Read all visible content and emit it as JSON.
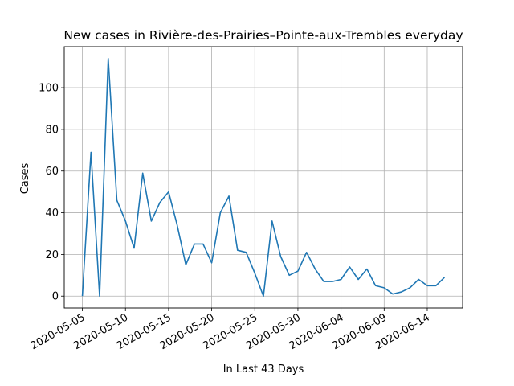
{
  "chart_data": {
    "type": "line",
    "title": "New cases in Rivière-des-Prairies–Pointe-aux-Trembles everyday",
    "xlabel": "In Last 43 Days",
    "ylabel": "Cases",
    "x_start": "2020-05-05",
    "x": [
      "2020-05-05",
      "2020-05-06",
      "2020-05-07",
      "2020-05-08",
      "2020-05-09",
      "2020-05-10",
      "2020-05-11",
      "2020-05-12",
      "2020-05-13",
      "2020-05-14",
      "2020-05-15",
      "2020-05-16",
      "2020-05-17",
      "2020-05-18",
      "2020-05-19",
      "2020-05-20",
      "2020-05-21",
      "2020-05-22",
      "2020-05-23",
      "2020-05-24",
      "2020-05-25",
      "2020-05-26",
      "2020-05-27",
      "2020-05-28",
      "2020-05-29",
      "2020-05-30",
      "2020-05-31",
      "2020-06-01",
      "2020-06-02",
      "2020-06-03",
      "2020-06-04",
      "2020-06-05",
      "2020-06-06",
      "2020-06-07",
      "2020-06-08",
      "2020-06-09",
      "2020-06-10",
      "2020-06-11",
      "2020-06-12",
      "2020-06-13",
      "2020-06-14",
      "2020-06-15",
      "2020-06-16"
    ],
    "values": [
      0,
      69,
      0,
      114,
      46,
      36,
      23,
      59,
      36,
      45,
      50,
      34,
      15,
      25,
      25,
      16,
      40,
      48,
      22,
      21,
      11,
      0,
      36,
      19,
      10,
      12,
      21,
      13,
      7,
      7,
      8,
      14,
      8,
      13,
      5,
      4,
      1,
      2,
      4,
      8,
      5,
      5,
      9
    ],
    "x_ticks": [
      "2020-05-05",
      "2020-05-10",
      "2020-05-15",
      "2020-05-20",
      "2020-05-25",
      "2020-05-30",
      "2020-06-04",
      "2020-06-09",
      "2020-06-14"
    ],
    "y_ticks": [
      0,
      20,
      40,
      60,
      80,
      100
    ],
    "ylim": [
      -5.7,
      119.7
    ],
    "grid": true,
    "line_color": "#1f77b4"
  }
}
